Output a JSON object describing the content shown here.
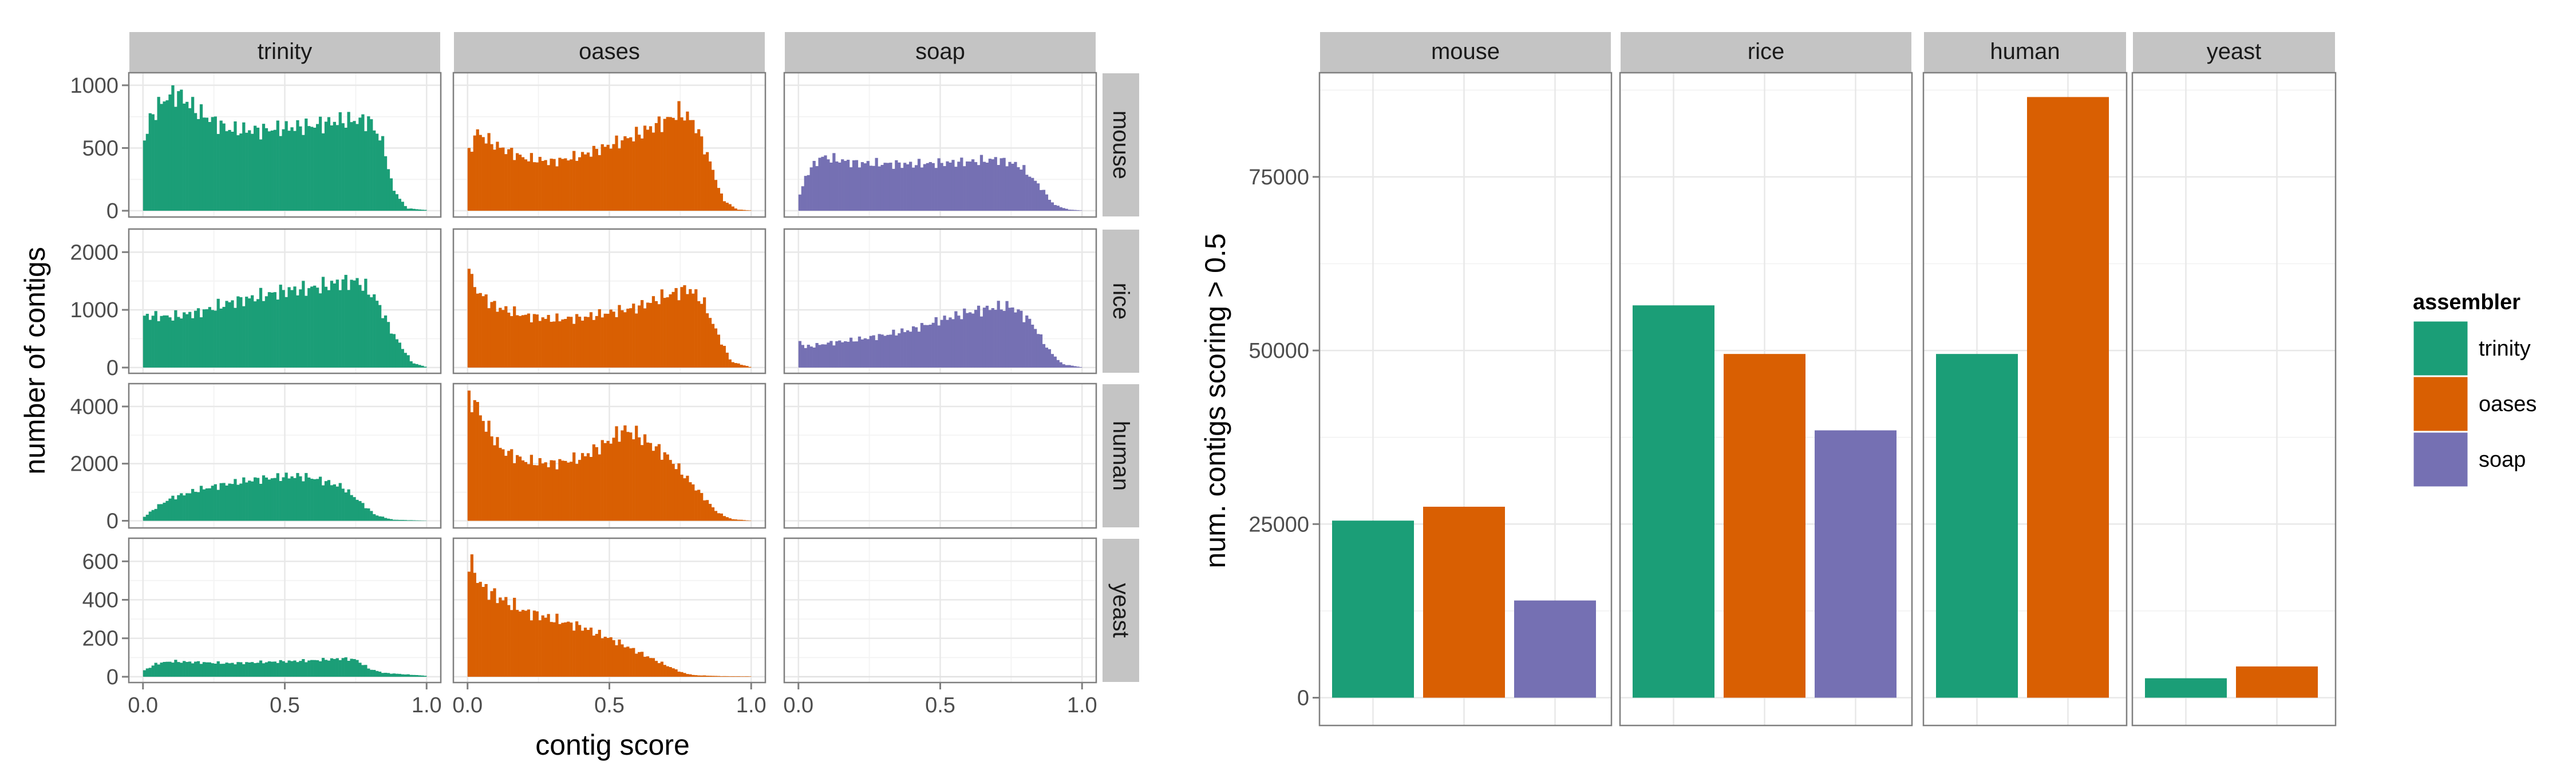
{
  "colors": {
    "trinity": "#1b9e77",
    "oases": "#d95f02",
    "soap": "#7570b3",
    "strip_bg": "#c4c4c4",
    "panel_border": "#7f7f7f",
    "grid_major": "#e8e8e8",
    "grid_minor": "#f4f4f4"
  },
  "chart_data": [
    {
      "type": "bar",
      "subtype": "faceted-histogram",
      "xlabel": "contig score",
      "ylabel": "number of contigs",
      "columns": [
        "trinity",
        "oases",
        "soap"
      ],
      "rows": [
        "mouse",
        "rice",
        "human",
        "yeast"
      ],
      "x_ticks": [
        "0.0",
        "0.5",
        "1.0"
      ],
      "xlim": [
        -0.05,
        1.05
      ],
      "y_axes": {
        "mouse": {
          "ylim": [
            -50,
            1100
          ],
          "ticks": [
            0,
            500,
            1000
          ],
          "tick_labels": [
            "0",
            "500",
            "1000"
          ]
        },
        "rice": {
          "ylim": [
            -100,
            2400
          ],
          "ticks": [
            0,
            1000,
            2000
          ],
          "tick_labels": [
            "0",
            "1000",
            "2000"
          ]
        },
        "human": {
          "ylim": [
            -250,
            4800
          ],
          "ticks": [
            0,
            2000,
            4000
          ],
          "tick_labels": [
            "0",
            "2000",
            "4000"
          ]
        },
        "yeast": {
          "ylim": [
            -30,
            720
          ],
          "ticks": [
            0,
            200,
            400,
            600
          ],
          "tick_labels": [
            "0",
            "200",
            "400",
            "600"
          ]
        }
      },
      "bin_width": 0.01,
      "profiles": {
        "trinity|mouse": [
          [
            0.0,
            520
          ],
          [
            0.03,
            760
          ],
          [
            0.08,
            900
          ],
          [
            0.12,
            940
          ],
          [
            0.2,
            780
          ],
          [
            0.3,
            650
          ],
          [
            0.4,
            640
          ],
          [
            0.5,
            660
          ],
          [
            0.6,
            680
          ],
          [
            0.7,
            720
          ],
          [
            0.8,
            720
          ],
          [
            0.85,
            520
          ],
          [
            0.88,
            180
          ],
          [
            0.93,
            20
          ],
          [
            1.0,
            5
          ]
        ],
        "oases|mouse": [
          [
            0.0,
            420
          ],
          [
            0.03,
            630
          ],
          [
            0.1,
            520
          ],
          [
            0.2,
            420
          ],
          [
            0.3,
            390
          ],
          [
            0.4,
            440
          ],
          [
            0.5,
            520
          ],
          [
            0.6,
            610
          ],
          [
            0.7,
            720
          ],
          [
            0.75,
            790
          ],
          [
            0.8,
            700
          ],
          [
            0.85,
            420
          ],
          [
            0.9,
            90
          ],
          [
            0.95,
            10
          ],
          [
            1.0,
            2
          ]
        ],
        "soap|mouse": [
          [
            0.0,
            90
          ],
          [
            0.03,
            300
          ],
          [
            0.08,
            430
          ],
          [
            0.2,
            380
          ],
          [
            0.4,
            370
          ],
          [
            0.6,
            390
          ],
          [
            0.7,
            410
          ],
          [
            0.78,
            360
          ],
          [
            0.85,
            200
          ],
          [
            0.9,
            50
          ],
          [
            0.95,
            10
          ],
          [
            1.0,
            2
          ]
        ],
        "trinity|rice": [
          [
            0.0,
            900
          ],
          [
            0.1,
            880
          ],
          [
            0.2,
            960
          ],
          [
            0.3,
            1120
          ],
          [
            0.4,
            1220
          ],
          [
            0.5,
            1330
          ],
          [
            0.6,
            1380
          ],
          [
            0.7,
            1480
          ],
          [
            0.76,
            1500
          ],
          [
            0.82,
            1200
          ],
          [
            0.88,
            600
          ],
          [
            0.95,
            80
          ],
          [
            1.0,
            10
          ]
        ],
        "oases|rice": [
          [
            0.0,
            2300
          ],
          [
            0.01,
            1500
          ],
          [
            0.05,
            1250
          ],
          [
            0.1,
            1050
          ],
          [
            0.2,
            900
          ],
          [
            0.3,
            840
          ],
          [
            0.4,
            860
          ],
          [
            0.5,
            950
          ],
          [
            0.6,
            1050
          ],
          [
            0.7,
            1250
          ],
          [
            0.78,
            1370
          ],
          [
            0.83,
            1150
          ],
          [
            0.88,
            600
          ],
          [
            0.93,
            100
          ],
          [
            1.0,
            5
          ]
        ],
        "soap|rice": [
          [
            0.0,
            520
          ],
          [
            0.02,
            350
          ],
          [
            0.1,
            420
          ],
          [
            0.2,
            480
          ],
          [
            0.3,
            560
          ],
          [
            0.4,
            660
          ],
          [
            0.5,
            820
          ],
          [
            0.6,
            960
          ],
          [
            0.7,
            1050
          ],
          [
            0.75,
            1060
          ],
          [
            0.82,
            800
          ],
          [
            0.88,
            320
          ],
          [
            0.93,
            60
          ],
          [
            1.0,
            5
          ]
        ],
        "trinity|human": [
          [
            0.0,
            100
          ],
          [
            0.05,
            500
          ],
          [
            0.1,
            800
          ],
          [
            0.2,
            1100
          ],
          [
            0.3,
            1300
          ],
          [
            0.4,
            1450
          ],
          [
            0.5,
            1550
          ],
          [
            0.55,
            1560
          ],
          [
            0.6,
            1500
          ],
          [
            0.7,
            1200
          ],
          [
            0.75,
            800
          ],
          [
            0.82,
            200
          ],
          [
            0.88,
            40
          ],
          [
            1.0,
            5
          ]
        ],
        "oases|human": [
          [
            0.0,
            4100
          ],
          [
            0.02,
            4300
          ],
          [
            0.06,
            3400
          ],
          [
            0.12,
            2500
          ],
          [
            0.2,
            2100
          ],
          [
            0.3,
            2000
          ],
          [
            0.4,
            2200
          ],
          [
            0.5,
            2800
          ],
          [
            0.55,
            3200
          ],
          [
            0.6,
            3000
          ],
          [
            0.7,
            2300
          ],
          [
            0.8,
            1200
          ],
          [
            0.88,
            300
          ],
          [
            0.93,
            60
          ],
          [
            1.0,
            5
          ]
        ],
        "trinity|yeast": [
          [
            0.0,
            30
          ],
          [
            0.05,
            70
          ],
          [
            0.1,
            80
          ],
          [
            0.2,
            75
          ],
          [
            0.3,
            70
          ],
          [
            0.4,
            75
          ],
          [
            0.5,
            80
          ],
          [
            0.6,
            85
          ],
          [
            0.7,
            95
          ],
          [
            0.75,
            90
          ],
          [
            0.8,
            40
          ],
          [
            0.85,
            20
          ],
          [
            0.95,
            10
          ],
          [
            1.0,
            5
          ]
        ],
        "oases|yeast": [
          [
            0.0,
            620
          ],
          [
            0.02,
            560
          ],
          [
            0.05,
            470
          ],
          [
            0.1,
            420
          ],
          [
            0.15,
            380
          ],
          [
            0.2,
            340
          ],
          [
            0.3,
            300
          ],
          [
            0.4,
            260
          ],
          [
            0.5,
            200
          ],
          [
            0.6,
            130
          ],
          [
            0.7,
            60
          ],
          [
            0.76,
            20
          ],
          [
            0.8,
            8
          ],
          [
            0.9,
            3
          ],
          [
            1.0,
            2
          ]
        ]
      }
    },
    {
      "type": "bar",
      "subtype": "faceted-grouped-bar",
      "ylabel": "num. contigs scoring > 0.5",
      "ylim": [
        -4000,
        90000
      ],
      "y_ticks": [
        0,
        25000,
        50000,
        75000
      ],
      "y_tick_labels": [
        "0",
        "25000",
        "50000",
        "75000"
      ],
      "facets": [
        {
          "name": "mouse",
          "bars": [
            {
              "assembler": "trinity",
              "value": 25500
            },
            {
              "assembler": "oases",
              "value": 27500
            },
            {
              "assembler": "soap",
              "value": 14000
            }
          ]
        },
        {
          "name": "rice",
          "bars": [
            {
              "assembler": "trinity",
              "value": 56500
            },
            {
              "assembler": "oases",
              "value": 49500
            },
            {
              "assembler": "soap",
              "value": 38500
            }
          ]
        },
        {
          "name": "human",
          "bars": [
            {
              "assembler": "trinity",
              "value": 49500
            },
            {
              "assembler": "oases",
              "value": 86500
            }
          ]
        },
        {
          "name": "yeast",
          "bars": [
            {
              "assembler": "trinity",
              "value": 2800
            },
            {
              "assembler": "oases",
              "value": 4500
            }
          ]
        }
      ],
      "legend": {
        "title": "assembler",
        "entries": [
          "trinity",
          "oases",
          "soap"
        ],
        "position": "right"
      }
    }
  ]
}
